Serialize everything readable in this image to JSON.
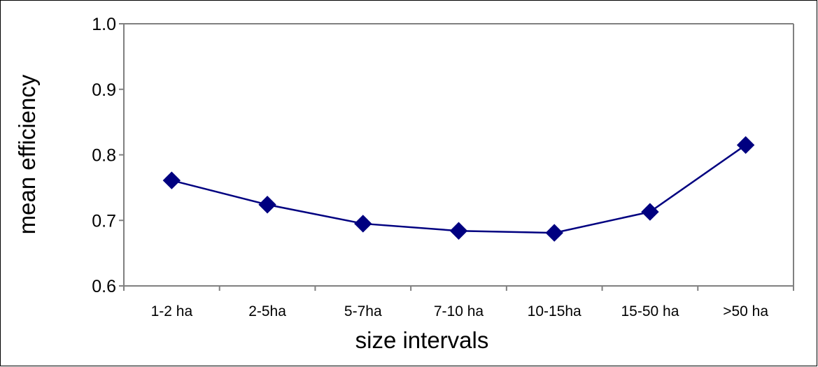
{
  "chart_data": {
    "type": "line",
    "title": "",
    "xlabel": "size intervals",
    "ylabel": "mean efficiency",
    "categories": [
      "1-2 ha",
      "2-5ha",
      "5-7ha",
      "7-10 ha",
      "10-15ha",
      "15-50 ha",
      ">50 ha"
    ],
    "series": [
      {
        "values": [
          0.761,
          0.724,
          0.695,
          0.684,
          0.681,
          0.713,
          0.815
        ]
      }
    ],
    "ylim": [
      0.6,
      1.0
    ],
    "yticks": [
      1.0,
      0.9,
      0.8,
      0.7,
      0.6
    ],
    "ytick_labels": [
      "1.0",
      "0.9",
      "0.8",
      "0.7",
      "0.6"
    ],
    "grid": false,
    "legend": "none",
    "marker": "diamond",
    "colors": {
      "series": "#000080",
      "axis": "#808080",
      "frame": "#000000"
    }
  }
}
